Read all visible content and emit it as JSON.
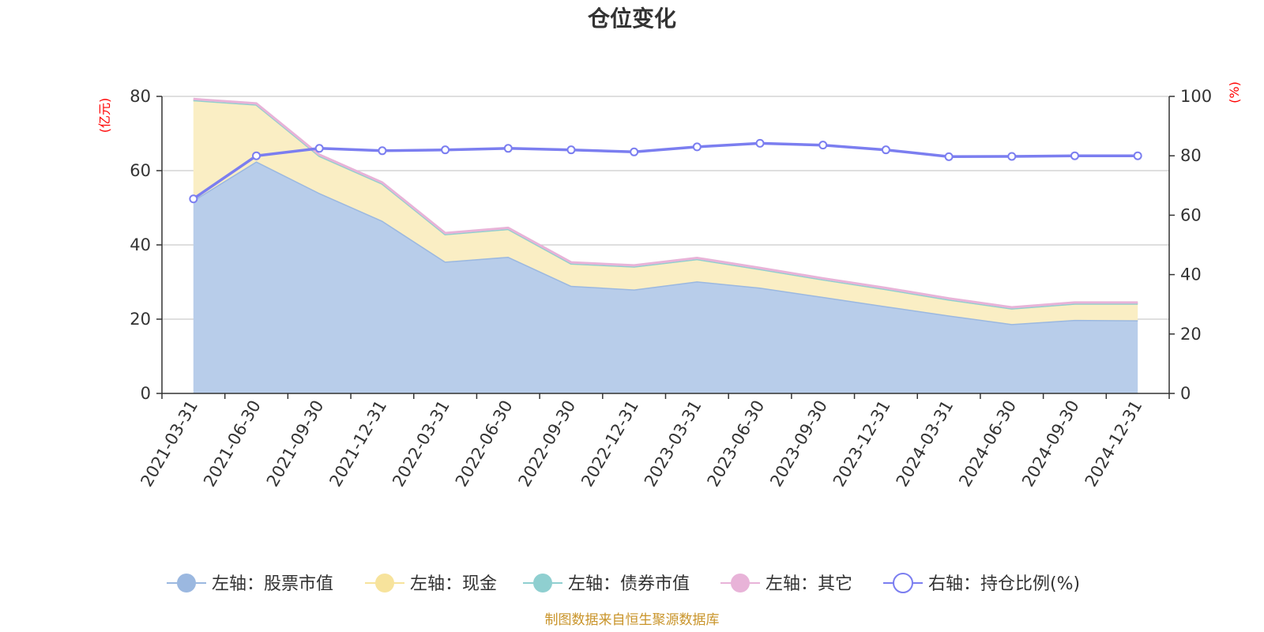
{
  "chart_data": {
    "type": "area",
    "title": "仓位变化",
    "source_note": "制图数据来自恒生聚源数据库",
    "left_unit": "(亿元)",
    "right_unit": "(%)",
    "categories": [
      "2021-03-31",
      "2021-06-30",
      "2021-09-30",
      "2021-12-31",
      "2022-03-31",
      "2022-06-30",
      "2022-09-30",
      "2022-12-31",
      "2023-03-31",
      "2023-06-30",
      "2023-09-30",
      "2023-12-31",
      "2024-03-31",
      "2024-06-30",
      "2024-09-30",
      "2024-12-31"
    ],
    "left_axis": {
      "min": 0,
      "max": 80,
      "ticks": [
        "0",
        "20",
        "40",
        "60",
        "80"
      ]
    },
    "right_axis": {
      "min": 0,
      "max": 100,
      "ticks": [
        "0",
        "20",
        "40",
        "60",
        "80",
        "100"
      ]
    },
    "series": [
      {
        "name": "左轴：股票市值",
        "axis": "left",
        "stack": true,
        "color": "#9bb8e0",
        "fill": "#b8cdea",
        "values": [
          52.0,
          62.5,
          54.0,
          46.5,
          35.5,
          36.8,
          29.0,
          28.0,
          30.2,
          28.5,
          26.0,
          23.5,
          21.0,
          18.7,
          19.8,
          19.7
        ]
      },
      {
        "name": "左轴：现金",
        "axis": "left",
        "stack": true,
        "color": "#f7e39c",
        "fill": "#faeec4",
        "values": [
          27.0,
          15.3,
          10.0,
          10.0,
          7.4,
          7.5,
          6.0,
          6.2,
          6.0,
          5.0,
          4.7,
          4.6,
          4.3,
          4.2,
          4.4,
          4.5
        ]
      },
      {
        "name": "左轴：债券市值",
        "axis": "left",
        "stack": true,
        "color": "#8fcfd0",
        "fill": "#c2e6e6",
        "values": [
          0,
          0,
          0,
          0,
          0,
          0,
          0,
          0,
          0,
          0,
          0,
          0,
          0,
          0,
          0,
          0
        ]
      },
      {
        "name": "左轴：其它",
        "axis": "left",
        "stack": true,
        "color": "#e8b3d8",
        "fill": "#f2d3e9",
        "values": [
          0.3,
          0.3,
          0.3,
          0.3,
          0.3,
          0.3,
          0.3,
          0.3,
          0.3,
          0.3,
          0.3,
          0.3,
          0.3,
          0.3,
          0.3,
          0.3
        ]
      },
      {
        "name": "右轴：持仓比例(%)",
        "axis": "right",
        "stack": false,
        "color": "#7b7ef0",
        "values": [
          65.5,
          80.0,
          82.5,
          81.7,
          82.0,
          82.5,
          82.0,
          81.3,
          83.0,
          84.2,
          83.6,
          82.0,
          79.7,
          79.8,
          80.0,
          80.0
        ]
      }
    ]
  }
}
